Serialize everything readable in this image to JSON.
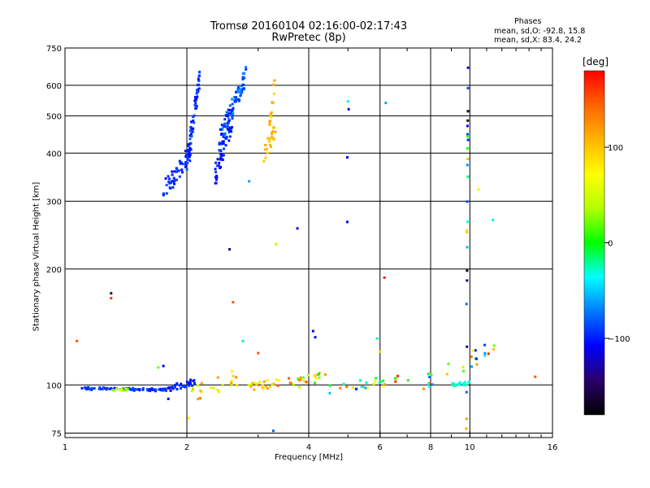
{
  "header": {
    "title_line1": "Tromsø 20160104 02:16:00-02:17:43",
    "title_line2": "RwPretec (8p)"
  },
  "stats": {
    "heading": "Phases",
    "line_o": "mean, sd,O: -92.8, 15.8",
    "line_x": "mean, sd,X: 83.4, 24.2"
  },
  "colorbar": {
    "unit": "[deg]",
    "ticks": [
      {
        "label": "100",
        "value": 100
      },
      {
        "label": "0",
        "value": 0
      },
      {
        "label": "−100",
        "value": -100
      }
    ],
    "range": [
      -180,
      180
    ],
    "colors": [
      "#000000",
      "#2a006a",
      "#0000ff",
      "#0078ff",
      "#00ffff",
      "#00ff00",
      "#b4ff00",
      "#ffff00",
      "#ffb400",
      "#ff6400",
      "#ff0000"
    ]
  },
  "chart_data": {
    "type": "scatter",
    "xlabel": "Frequency [MHz]",
    "ylabel": "Stationary phase Virtual Height [km]",
    "x_scale": "log",
    "y_scale": "log",
    "xlim": [
      1,
      16
    ],
    "ylim": [
      73,
      750
    ],
    "grid": true,
    "xticks": [
      {
        "label": "1",
        "value": 1
      },
      {
        "label": "2",
        "value": 2
      },
      {
        "label": "4",
        "value": 4
      },
      {
        "label": "6",
        "value": 6
      },
      {
        "label": "8",
        "value": 8
      },
      {
        "label": "10",
        "value": 10
      },
      {
        "label": "16",
        "value": 16
      }
    ],
    "xminor": [
      3,
      5,
      7,
      9,
      11,
      12,
      13,
      14,
      15
    ],
    "yticks": [
      {
        "label": "750",
        "value": 750
      },
      {
        "label": "600",
        "value": 600
      },
      {
        "label": "500",
        "value": 500
      },
      {
        "label": "400",
        "value": 400
      },
      {
        "label": "300",
        "value": 300
      },
      {
        "label": "200",
        "value": 200
      },
      {
        "label": "100",
        "value": 100
      },
      {
        "label": "75",
        "value": 75
      }
    ],
    "color_by": "phase [deg]",
    "segments": [
      {
        "x": [
          1.75,
          2.05
        ],
        "y": [
          320,
          400
        ],
        "n": 55,
        "spread_y": 0.06,
        "phase": [
          -110,
          -85
        ]
      },
      {
        "x": [
          2.0,
          2.15
        ],
        "y": [
          380,
          630
        ],
        "n": 60,
        "spread_y": 0.06,
        "phase": [
          -115,
          -80
        ]
      },
      {
        "x": [
          2.35,
          2.6
        ],
        "y": [
          350,
          500
        ],
        "n": 60,
        "spread_y": 0.07,
        "phase": [
          -115,
          -85
        ]
      },
      {
        "x": [
          2.4,
          2.8
        ],
        "y": [
          430,
          640
        ],
        "n": 75,
        "spread_y": 0.06,
        "phase": [
          -110,
          -60
        ]
      },
      {
        "x": [
          3.1,
          3.35
        ],
        "y": [
          400,
          470
        ],
        "n": 22,
        "spread_y": 0.05,
        "phase": [
          95,
          115
        ]
      },
      {
        "x": [
          3.2,
          3.3
        ],
        "y": [
          470,
          610
        ],
        "n": 14,
        "spread_y": 0.05,
        "phase": [
          85,
          120
        ]
      },
      {
        "x": [
          1.1,
          1.8
        ],
        "y": [
          98,
          97
        ],
        "n": 80,
        "spread_y": 0.008,
        "phase": [
          -105,
          -80
        ]
      },
      {
        "x": [
          1.3,
          1.45
        ],
        "y": [
          97,
          97
        ],
        "n": 12,
        "spread_y": 0.008,
        "phase": [
          20,
          60
        ]
      },
      {
        "x": [
          1.8,
          2.1
        ],
        "y": [
          98,
          102
        ],
        "n": 30,
        "spread_y": 0.02,
        "phase": [
          -110,
          -90
        ]
      },
      {
        "x": [
          2.05,
          2.7
        ],
        "y": [
          95,
          105
        ],
        "n": 25,
        "spread_y": 0.05,
        "phase": [
          40,
          140
        ]
      },
      {
        "x": [
          2.8,
          3.6
        ],
        "y": [
          98,
          103
        ],
        "n": 25,
        "spread_y": 0.025,
        "phase": [
          40,
          150
        ]
      },
      {
        "x": [
          3.6,
          4.4
        ],
        "y": [
          100,
          106
        ],
        "n": 22,
        "spread_y": 0.03,
        "phase": [
          -20,
          170
        ]
      },
      {
        "x": [
          4.5,
          7.2
        ],
        "y": [
          98,
          104
        ],
        "n": 28,
        "spread_y": 0.03,
        "phase": [
          -100,
          170
        ]
      },
      {
        "x": [
          7.5,
          11.5
        ],
        "y": [
          100,
          125
        ],
        "n": 26,
        "spread_y": 0.05,
        "phase": [
          -110,
          170
        ]
      },
      {
        "x": [
          9.0,
          10.0
        ],
        "y": [
          100,
          101
        ],
        "n": 18,
        "spread_y": 0.01,
        "phase": [
          -40,
          -20
        ]
      },
      {
        "x": [
          9.8,
          9.9
        ],
        "y": [
          100,
          640
        ],
        "n": 24,
        "spread_y": 0.4,
        "phase": [
          -180,
          150
        ]
      }
    ],
    "points": [
      {
        "x": 5.0,
        "y": 545,
        "phase": -40
      },
      {
        "x": 5.02,
        "y": 520,
        "phase": -110
      },
      {
        "x": 6.2,
        "y": 540,
        "phase": -60
      },
      {
        "x": 4.98,
        "y": 390,
        "phase": -110
      },
      {
        "x": 4.98,
        "y": 265,
        "phase": -110
      },
      {
        "x": 3.75,
        "y": 255,
        "phase": -110
      },
      {
        "x": 3.32,
        "y": 232,
        "phase": 40
      },
      {
        "x": 2.55,
        "y": 225,
        "phase": -140
      },
      {
        "x": 10.5,
        "y": 322,
        "phase": 60
      },
      {
        "x": 11.4,
        "y": 268,
        "phase": -40
      },
      {
        "x": 2.85,
        "y": 338,
        "phase": -60
      },
      {
        "x": 1.3,
        "y": 173,
        "phase": -150
      },
      {
        "x": 1.3,
        "y": 168,
        "phase": 160
      },
      {
        "x": 1.07,
        "y": 130,
        "phase": 150
      },
      {
        "x": 2.6,
        "y": 164,
        "phase": 150
      },
      {
        "x": 6.15,
        "y": 190,
        "phase": 170
      },
      {
        "x": 4.1,
        "y": 138,
        "phase": -110
      },
      {
        "x": 4.15,
        "y": 133,
        "phase": -110
      },
      {
        "x": 2.75,
        "y": 130,
        "phase": -20
      },
      {
        "x": 5.9,
        "y": 132,
        "phase": -20
      },
      {
        "x": 1.75,
        "y": 112,
        "phase": -110
      },
      {
        "x": 1.7,
        "y": 111,
        "phase": 20
      },
      {
        "x": 1.8,
        "y": 92,
        "phase": -110
      },
      {
        "x": 2.02,
        "y": 82,
        "phase": 80
      },
      {
        "x": 3.27,
        "y": 76,
        "phase": -80
      },
      {
        "x": 9.8,
        "y": 77,
        "phase": 110
      },
      {
        "x": 14.5,
        "y": 105,
        "phase": 150
      },
      {
        "x": 3.0,
        "y": 121,
        "phase": 150
      },
      {
        "x": 6.0,
        "y": 122,
        "phase": 40
      }
    ]
  }
}
